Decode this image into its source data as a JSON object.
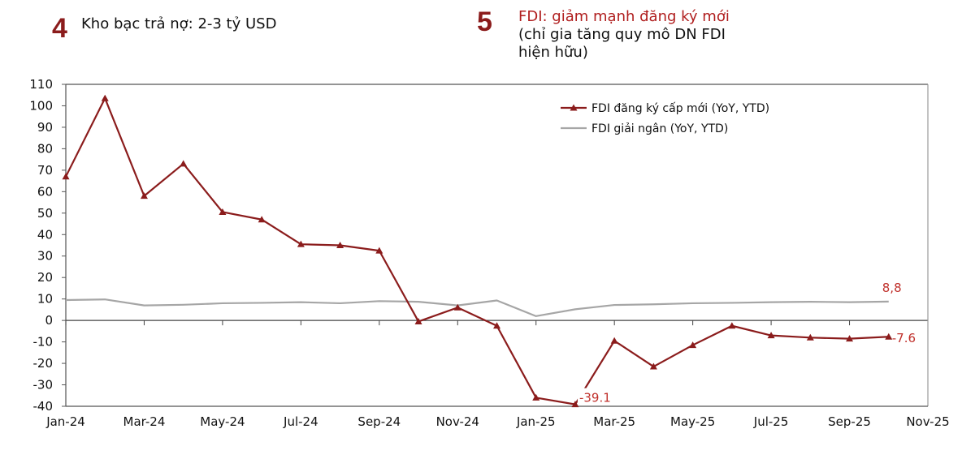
{
  "header_left": {
    "number": "4",
    "title": "Kho bạc trả nợ: 2-3 tỷ USD"
  },
  "header_right": {
    "number": "5",
    "title": "FDI: giảm mạnh đăng ký mới",
    "subtitle_line1": "(chỉ gia tăng quy mô DN FDI",
    "subtitle_line2": "hiện hữu)"
  },
  "colors": {
    "accent": "#8b1c1c",
    "series_red": "#8b1c1c",
    "series_gray": "#a6a6a6",
    "label_red": "#c0302b",
    "axis": "#555555"
  },
  "chart_data": {
    "type": "line",
    "title": "FDI: giảm mạnh đăng ký mới",
    "xlabel": "",
    "ylabel": "",
    "ylim": [
      -40,
      110
    ],
    "yticks": [
      110,
      100,
      90,
      80,
      70,
      60,
      50,
      40,
      30,
      20,
      10,
      0,
      -10,
      -20,
      -30,
      -40
    ],
    "xtick_labels": [
      "Jan-24",
      "Mar-24",
      "May-24",
      "Jul-24",
      "Sep-24",
      "Nov-24",
      "Jan-25",
      "Mar-25",
      "May-25",
      "Jul-25",
      "Sep-25",
      "Nov-25"
    ],
    "x": [
      "Jan-24",
      "Feb-24",
      "Mar-24",
      "Apr-24",
      "May-24",
      "Jun-24",
      "Jul-24",
      "Aug-24",
      "Sep-24",
      "Oct-24",
      "Nov-24",
      "Dec-24",
      "Jan-25",
      "Feb-25",
      "Mar-25",
      "Apr-25",
      "May-25",
      "Jun-25",
      "Jul-25",
      "Aug-25",
      "Sep-25",
      "Oct-25"
    ],
    "grid": false,
    "legend_position": "upper-right-inside",
    "series": [
      {
        "name": "FDI đăng ký cấp mới (YoY, YTD)",
        "marker": "triangle",
        "color": "#8b1c1c",
        "values": [
          67,
          103.5,
          58,
          73,
          50.5,
          47,
          35.5,
          35,
          32.5,
          -0.5,
          6,
          -2.5,
          -36,
          -39.1,
          -9.5,
          -21.5,
          -11.5,
          -2.5,
          -7,
          -8,
          -8.5,
          -7.6
        ]
      },
      {
        "name": "FDI giải ngân (YoY, YTD)",
        "marker": "none",
        "color": "#a6a6a6",
        "values": [
          9.5,
          9.8,
          7,
          7.3,
          8,
          8.2,
          8.5,
          8,
          9,
          8.7,
          7,
          9.3,
          2,
          5.2,
          7.2,
          7.5,
          8,
          8.2,
          8.5,
          8.7,
          8.5,
          8.8
        ]
      }
    ],
    "annotations": [
      {
        "text": "-39.1",
        "x": "Feb-25",
        "series": "FDI đăng ký cấp mới (YoY, YTD)"
      },
      {
        "text": "8,8",
        "x": "Oct-25",
        "series": "FDI giải ngân (YoY, YTD)"
      },
      {
        "text": "-7.6",
        "x": "Oct-25",
        "series": "FDI đăng ký cấp mới (YoY, YTD)"
      }
    ]
  }
}
